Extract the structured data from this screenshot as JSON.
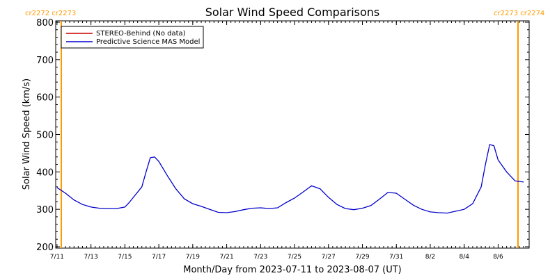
{
  "chart_data": {
    "type": "line",
    "title": "Solar Wind Speed Comparisons",
    "xlabel": "Month/Day from 2023-07-11 to 2023-08-07 (UT)",
    "ylabel": "Solar Wind Speed (km/s)",
    "xlim": [
      "2023-07-11",
      "2023-08-08"
    ],
    "ylim": [
      200,
      800
    ],
    "yticks": [
      200,
      300,
      400,
      500,
      600,
      700,
      800
    ],
    "xticks": [
      {
        "date": "2023-07-11",
        "label": "7/11"
      },
      {
        "date": "2023-07-13",
        "label": "7/13"
      },
      {
        "date": "2023-07-15",
        "label": "7/15"
      },
      {
        "date": "2023-07-17",
        "label": "7/17"
      },
      {
        "date": "2023-07-19",
        "label": "7/19"
      },
      {
        "date": "2023-07-21",
        "label": "7/21"
      },
      {
        "date": "2023-07-23",
        "label": "7/23"
      },
      {
        "date": "2023-07-25",
        "label": "7/25"
      },
      {
        "date": "2023-07-27",
        "label": "7/27"
      },
      {
        "date": "2023-07-29",
        "label": "7/29"
      },
      {
        "date": "2023-07-31",
        "label": "7/31"
      },
      {
        "date": "2023-08-02",
        "label": "8/2"
      },
      {
        "date": "2023-08-04",
        "label": "8/4"
      },
      {
        "date": "2023-08-06",
        "label": "8/6"
      }
    ],
    "grid": false,
    "legend_position": "top-left",
    "carrington_markers": [
      {
        "date": "2023-07-11",
        "label": "cr2272 cr2273",
        "side": "left"
      },
      {
        "date": "2023-08-07",
        "label": "cr2273 cr2274",
        "side": "right"
      }
    ],
    "series": [
      {
        "name": "STEREO-Behind (No data)",
        "color": "#cc0000",
        "x": [],
        "y": []
      },
      {
        "name": "Predictive Science MAS Model",
        "color": "#0000cc",
        "x": [
          "2023-07-11 00:00",
          "2023-07-11 12:00",
          "2023-07-12 00:00",
          "2023-07-12 12:00",
          "2023-07-13 00:00",
          "2023-07-13 12:00",
          "2023-07-14 00:00",
          "2023-07-14 12:00",
          "2023-07-15 00:00",
          "2023-07-15 06:00",
          "2023-07-15 12:00",
          "2023-07-16 00:00",
          "2023-07-16 06:00",
          "2023-07-16 12:00",
          "2023-07-16 18:00",
          "2023-07-17 00:00",
          "2023-07-17 12:00",
          "2023-07-18 00:00",
          "2023-07-18 12:00",
          "2023-07-19 00:00",
          "2023-07-19 12:00",
          "2023-07-20 00:00",
          "2023-07-20 12:00",
          "2023-07-21 00:00",
          "2023-07-21 12:00",
          "2023-07-22 00:00",
          "2023-07-22 12:00",
          "2023-07-23 00:00",
          "2023-07-23 12:00",
          "2023-07-24 00:00",
          "2023-07-24 12:00",
          "2023-07-25 00:00",
          "2023-07-25 12:00",
          "2023-07-26 00:00",
          "2023-07-26 12:00",
          "2023-07-27 00:00",
          "2023-07-27 12:00",
          "2023-07-28 00:00",
          "2023-07-28 12:00",
          "2023-07-29 00:00",
          "2023-07-29 12:00",
          "2023-07-30 00:00",
          "2023-07-30 12:00",
          "2023-07-31 00:00",
          "2023-07-31 12:00",
          "2023-08-01 00:00",
          "2023-08-01 12:00",
          "2023-08-02 00:00",
          "2023-08-02 12:00",
          "2023-08-03 00:00",
          "2023-08-03 12:00",
          "2023-08-04 00:00",
          "2023-08-04 12:00",
          "2023-08-05 00:00",
          "2023-08-05 06:00",
          "2023-08-05 12:00",
          "2023-08-05 18:00",
          "2023-08-06 00:00",
          "2023-08-06 12:00",
          "2023-08-07 00:00",
          "2023-08-07 12:00"
        ],
        "y": [
          358,
          343,
          325,
          313,
          306,
          303,
          302,
          302,
          306,
          318,
          332,
          360,
          400,
          438,
          440,
          428,
          390,
          355,
          328,
          315,
          308,
          300,
          292,
          291,
          294,
          299,
          303,
          304,
          302,
          304,
          318,
          330,
          346,
          363,
          355,
          332,
          313,
          302,
          299,
          303,
          310,
          327,
          345,
          343,
          327,
          311,
          300,
          293,
          291,
          290,
          295,
          300,
          315,
          360,
          420,
          473,
          470,
          432,
          400,
          376,
          373
        ]
      }
    ]
  }
}
